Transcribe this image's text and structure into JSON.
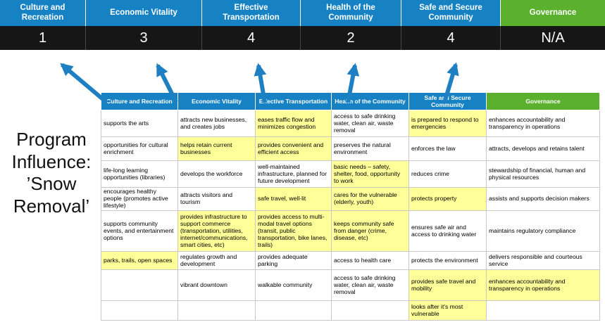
{
  "banner": {
    "columns": [
      {
        "label": "Culture and Recreation",
        "score": "1"
      },
      {
        "label": "Economic Vitality",
        "score": "3"
      },
      {
        "label": "Effective Transportation",
        "score": "4"
      },
      {
        "label": "Health of the Community",
        "score": "2"
      },
      {
        "label": "Safe and Secure Community",
        "score": "4"
      },
      {
        "label": "Governance",
        "score": "N/A"
      }
    ]
  },
  "program_label": "Program Influence: ’Snow Removal’",
  "table": {
    "headers": [
      "Culture and Recreation",
      "Economic Vitality",
      "Effective Transportation",
      "Health of the Community",
      "Safe and Secure Community",
      "Governance"
    ],
    "rows": [
      [
        {
          "text": "supports the arts",
          "hl": false
        },
        {
          "text": "attracts new businesses, and creates jobs",
          "hl": false
        },
        {
          "text": "eases traffic flow and minimizes congestion",
          "hl": true
        },
        {
          "text": "access to safe drinking water, clean air, waste removal",
          "hl": false
        },
        {
          "text": "is prepared to respond to emergencies",
          "hl": true
        },
        {
          "text": "enhances accountability and transparency in operations",
          "hl": false
        }
      ],
      [
        {
          "text": "opportunities for cultural enrichment",
          "hl": false
        },
        {
          "text": "helps retain current businesses",
          "hl": true
        },
        {
          "text": "provides convenient and efficient access",
          "hl": true
        },
        {
          "text": "preserves the natural environment",
          "hl": false
        },
        {
          "text": "enforces the law",
          "hl": false
        },
        {
          "text": "attracts, develops and retains talent",
          "hl": false
        }
      ],
      [
        {
          "text": "life-long learning opportunities (libraries)",
          "hl": false
        },
        {
          "text": "develops the workforce",
          "hl": false
        },
        {
          "text": "well-maintained infrastructure, planned for future development",
          "hl": false
        },
        {
          "text": "basic needs – safety, shelter, food, opportunity to work",
          "hl": true
        },
        {
          "text": "reduces crime",
          "hl": false
        },
        {
          "text": "stewardship of financial, human and physical resources",
          "hl": false
        }
      ],
      [
        {
          "text": "encourages healthy people (promotes active lifestyle)",
          "hl": false
        },
        {
          "text": "attracts visitors and tourism",
          "hl": false
        },
        {
          "text": "safe travel, well-lit",
          "hl": true
        },
        {
          "text": "cares for the vulnerable (elderly, youth)",
          "hl": true
        },
        {
          "text": "protects property",
          "hl": true
        },
        {
          "text": "assists and supports decision makers",
          "hl": false
        }
      ],
      [
        {
          "text": "supports community events, and entertainment options",
          "hl": false
        },
        {
          "text": "provides infrastructure to support commerce (transportation, utilities, internet/communications, smart cities, etc)",
          "hl": true
        },
        {
          "text": "provides access to multi-modal travel options (transit, public transportation, bike lanes, trails)",
          "hl": true
        },
        {
          "text": "keeps community safe from danger (crime, disease, etc)",
          "hl": true
        },
        {
          "text": "ensures safe air and access to drinking water",
          "hl": false
        },
        {
          "text": "maintains regulatory compliance",
          "hl": false
        }
      ],
      [
        {
          "text": "parks, trails, open spaces",
          "hl": true
        },
        {
          "text": "regulates growth and development",
          "hl": false
        },
        {
          "text": "provides adequate parking",
          "hl": false
        },
        {
          "text": "access to health care",
          "hl": false
        },
        {
          "text": "protects the environment",
          "hl": false
        },
        {
          "text": "delivers responsible and courteous service",
          "hl": false
        }
      ],
      [
        {
          "text": "",
          "hl": false
        },
        {
          "text": "vibrant downtown",
          "hl": false
        },
        {
          "text": "walkable community",
          "hl": false
        },
        {
          "text": "access to safe drinking water, clean air, waste removal",
          "hl": false
        },
        {
          "text": "provides safe travel and mobility",
          "hl": true
        },
        {
          "text": "enhances accountability and transparency in operations",
          "hl": true
        }
      ],
      [
        {
          "text": "",
          "hl": false
        },
        {
          "text": "",
          "hl": false
        },
        {
          "text": "",
          "hl": false
        },
        {
          "text": "",
          "hl": false
        },
        {
          "text": "looks after it's most vulnerable",
          "hl": true
        },
        {
          "text": "",
          "hl": false
        }
      ]
    ]
  },
  "colors": {
    "header_blue": "#1682c4",
    "header_green": "#5bb02e",
    "score_bg": "#161616",
    "highlight": "#ffff99",
    "arrow": "#1e7fc2"
  }
}
